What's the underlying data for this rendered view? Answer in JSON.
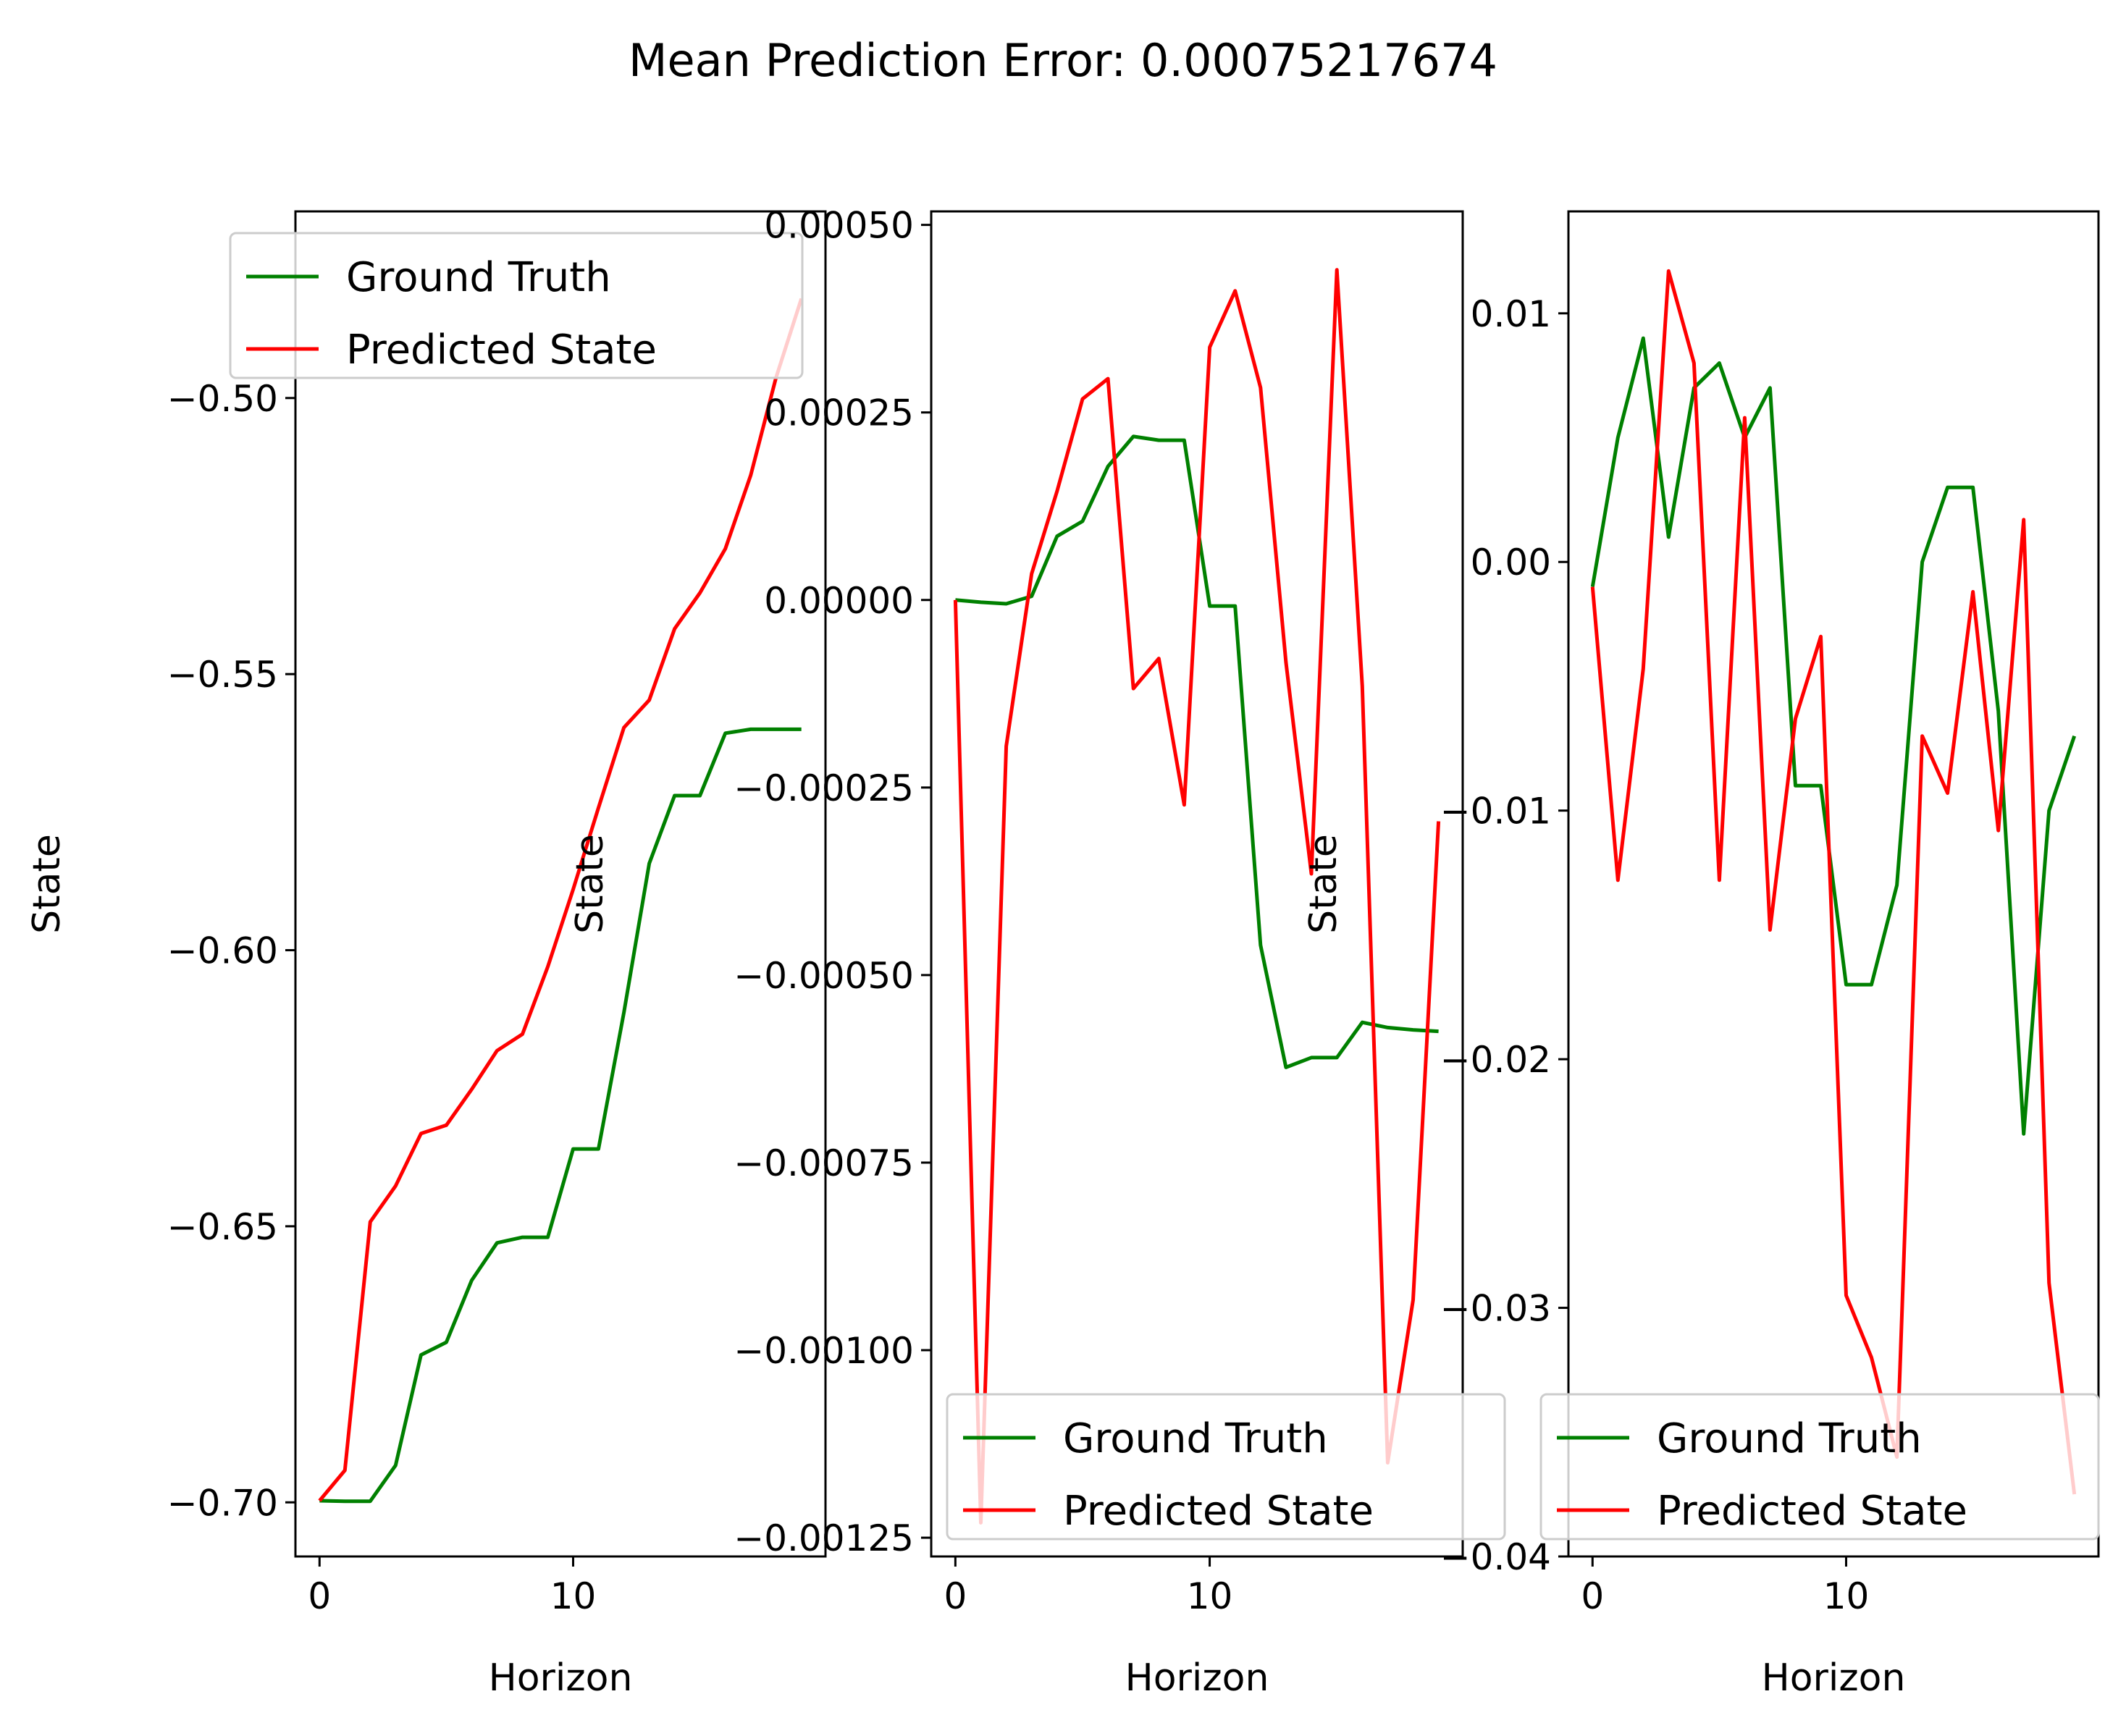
{
  "figure": {
    "title": "Mean Prediction Error: 0.00075217674"
  },
  "colors": {
    "ground_truth": "#008000",
    "predicted": "#ff0000",
    "axes": "#000000",
    "legend_edge": "#cccccc"
  },
  "chart_data": [
    {
      "type": "line",
      "title": "",
      "xlabel": "Horizon",
      "ylabel": "State",
      "xlim": [
        -0.95,
        19.95
      ],
      "ylim": [
        -0.7098,
        -0.4662
      ],
      "xticks": [
        0,
        10
      ],
      "xtick_labels": [
        "0",
        "10"
      ],
      "yticks": [
        -0.7,
        -0.65,
        -0.6,
        -0.55,
        -0.5
      ],
      "ytick_labels": [
        "−0.70",
        "−0.65",
        "−0.60",
        "−0.55",
        "−0.50"
      ],
      "legend": {
        "placement": "upper-left",
        "entries": [
          "Ground Truth",
          "Predicted State"
        ]
      },
      "grid": false,
      "x": [
        0,
        1,
        2,
        3,
        4,
        5,
        6,
        7,
        8,
        9,
        10,
        11,
        12,
        13,
        14,
        15,
        16,
        17,
        18,
        19
      ],
      "series": [
        {
          "name": "Ground Truth",
          "color": "#008000",
          "values": [
            -0.6997,
            -0.6998,
            -0.6998,
            -0.6933,
            -0.6733,
            -0.671,
            -0.6598,
            -0.653,
            -0.652,
            -0.652,
            -0.636,
            -0.636,
            -0.6113,
            -0.5843,
            -0.572,
            -0.572,
            -0.5607,
            -0.56,
            -0.56,
            -0.56
          ]
        },
        {
          "name": "Predicted State",
          "color": "#ff0000",
          "values": [
            -0.6997,
            -0.6942,
            -0.6492,
            -0.6427,
            -0.6332,
            -0.6317,
            -0.6252,
            -0.6182,
            -0.6152,
            -0.603,
            -0.589,
            -0.5742,
            -0.5597,
            -0.5547,
            -0.5418,
            -0.5353,
            -0.5273,
            -0.514,
            -0.4963,
            -0.482
          ]
        }
      ]
    },
    {
      "type": "line",
      "title": "",
      "xlabel": "Horizon",
      "ylabel": "State",
      "xlim": [
        -0.95,
        19.95
      ],
      "ylim": [
        -0.001275,
        0.000518
      ],
      "xticks": [
        0,
        10
      ],
      "xtick_labels": [
        "0",
        "10"
      ],
      "yticks": [
        -0.00125,
        -0.001,
        -0.00075,
        -0.0005,
        -0.00025,
        0.0,
        0.00025,
        0.0005
      ],
      "ytick_labels": [
        "−0.00125",
        "−0.00100",
        "−0.00075",
        "−0.00050",
        "−0.00025",
        "0.00000",
        "0.00025",
        "0.00050"
      ],
      "legend": {
        "placement": "lower-right",
        "entries": [
          "Ground Truth",
          "Predicted State"
        ]
      },
      "grid": false,
      "x": [
        0,
        1,
        2,
        3,
        4,
        5,
        6,
        7,
        8,
        9,
        10,
        11,
        12,
        13,
        14,
        15,
        16,
        17,
        18,
        19
      ],
      "series": [
        {
          "name": "Ground Truth",
          "color": "#008000",
          "values": [
            0.0,
            -3e-06,
            -5e-06,
            5e-06,
            8.5e-05,
            0.000105,
            0.000178,
            0.000218,
            0.000213,
            0.000213,
            -8e-06,
            -8e-06,
            -0.00046,
            -0.000623,
            -0.00061,
            -0.00061,
            -0.000563,
            -0.00057,
            -0.000573,
            -0.000575
          ]
        },
        {
          "name": "Predicted State",
          "color": "#ff0000",
          "values": [
            0.0,
            -0.00123,
            -0.000195,
            3.5e-05,
            0.000145,
            0.000268,
            0.000295,
            -0.000118,
            -7.8e-05,
            -0.000273,
            0.000337,
            0.000412,
            0.000283,
            -8.3e-05,
            -0.000365,
            0.00044,
            -0.000115,
            -0.00115,
            -0.000933,
            -0.000295
          ]
        }
      ]
    },
    {
      "type": "line",
      "title": "",
      "xlabel": "Horizon",
      "ylabel": "State",
      "xlim": [
        -0.95,
        19.95
      ],
      "ylim": [
        -0.04,
        0.0141
      ],
      "xticks": [
        0,
        10
      ],
      "xtick_labels": [
        "0",
        "10"
      ],
      "yticks": [
        -0.04,
        -0.03,
        -0.02,
        -0.01,
        0.0,
        0.01
      ],
      "ytick_labels": [
        "−0.04",
        "−0.03",
        "−0.02",
        "−0.01",
        "0.00",
        "0.01"
      ],
      "legend": {
        "placement": "lower-right",
        "entries": [
          "Ground Truth",
          "Predicted State"
        ]
      },
      "grid": false,
      "x": [
        0,
        1,
        2,
        3,
        4,
        5,
        6,
        7,
        8,
        9,
        10,
        11,
        12,
        13,
        14,
        15,
        16,
        17,
        18,
        19
      ],
      "series": [
        {
          "name": "Ground Truth",
          "color": "#008000",
          "values": [
            -0.001,
            0.005,
            0.009,
            0.001,
            0.007,
            0.008,
            0.005,
            0.007,
            -0.009,
            -0.009,
            -0.017,
            -0.017,
            -0.013,
            0.0,
            0.003,
            0.003,
            -0.006,
            -0.023,
            -0.01,
            -0.007
          ]
        },
        {
          "name": "Predicted State",
          "color": "#ff0000",
          "values": [
            -0.001,
            -0.0128,
            -0.0043,
            0.0117,
            0.008,
            -0.0128,
            0.0058,
            -0.0148,
            -0.0063,
            -0.003,
            -0.0295,
            -0.032,
            -0.036,
            -0.007,
            -0.0093,
            -0.0012,
            -0.0108,
            0.0017,
            -0.029,
            -0.0375
          ]
        }
      ]
    }
  ]
}
